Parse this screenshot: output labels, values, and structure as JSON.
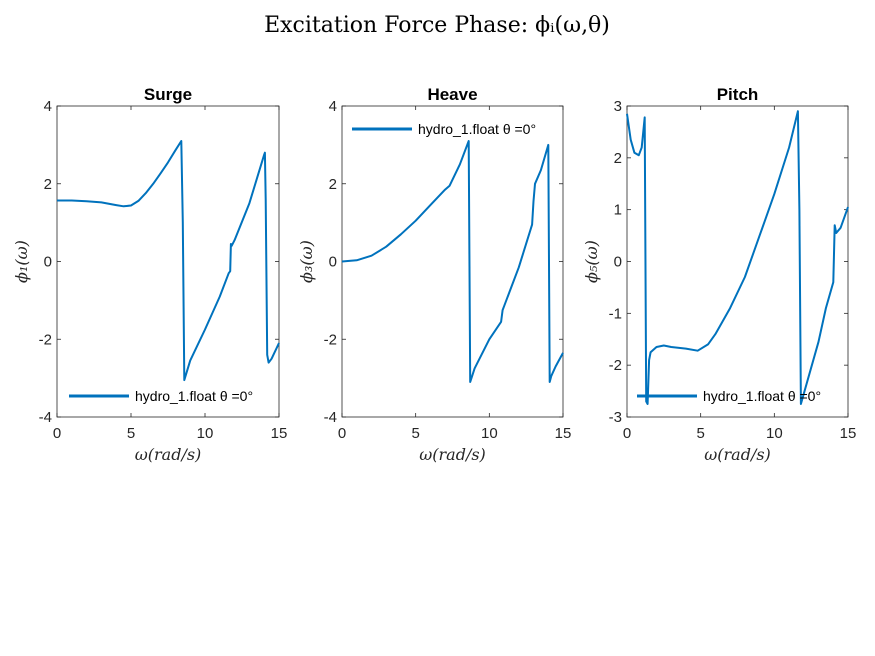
{
  "figure_title": "Excitation Force Phase: ϕᵢ(ω,θ)",
  "line_color": "#0072BD",
  "chart_data": [
    {
      "type": "line",
      "title": "Surge",
      "xlabel": "ω(rad/s)",
      "ylabel": "ϕ₁(ω)",
      "xlim": [
        0,
        15
      ],
      "ylim": [
        -4,
        4
      ],
      "xticks": [
        0,
        5,
        10,
        15
      ],
      "yticks": [
        -4,
        -2,
        0,
        2,
        4
      ],
      "legend_position": "bottom",
      "series": [
        {
          "name": "hydro_1.float θ =0°",
          "x": [
            0,
            1,
            2,
            3,
            4,
            4.5,
            5,
            5.5,
            6,
            6.5,
            7,
            7.5,
            8,
            8.4,
            8.5,
            8.6,
            9,
            10,
            11,
            11.6,
            11.7,
            11.75,
            11.8,
            12,
            13,
            14,
            14.05,
            14.1,
            14.2,
            14.3,
            14.5,
            15
          ],
          "y": [
            1.57,
            1.57,
            1.55,
            1.52,
            1.45,
            1.42,
            1.44,
            1.56,
            1.76,
            2.0,
            2.27,
            2.55,
            2.86,
            3.1,
            1.0,
            -3.05,
            -2.55,
            -1.75,
            -0.9,
            -0.3,
            -0.25,
            0.45,
            0.4,
            0.55,
            1.5,
            2.75,
            2.8,
            1.6,
            -2.4,
            -2.6,
            -2.5,
            -2.1
          ]
        }
      ]
    },
    {
      "type": "line",
      "title": "Heave",
      "xlabel": "ω(rad/s)",
      "ylabel": "ϕ₃(ω)",
      "xlim": [
        0,
        15
      ],
      "ylim": [
        -4,
        4
      ],
      "xticks": [
        0,
        5,
        10,
        15
      ],
      "yticks": [
        -4,
        -2,
        0,
        2,
        4
      ],
      "legend_position": "top",
      "series": [
        {
          "name": "hydro_1.float θ =0°",
          "x": [
            0,
            1,
            2,
            3,
            4,
            5,
            6,
            7,
            7.3,
            8,
            8.6,
            8.7,
            9,
            10,
            10.8,
            10.9,
            11,
            12,
            12.9,
            13,
            13.1,
            13.5,
            14,
            14.1,
            14.2,
            14.5,
            15
          ],
          "y": [
            0,
            0.03,
            0.15,
            0.38,
            0.7,
            1.05,
            1.45,
            1.85,
            1.95,
            2.5,
            3.1,
            -3.1,
            -2.75,
            -2.0,
            -1.55,
            -1.25,
            -1.15,
            -0.15,
            0.95,
            1.55,
            2.0,
            2.35,
            3.0,
            -3.1,
            -2.95,
            -2.7,
            -2.35
          ]
        }
      ]
    },
    {
      "type": "line",
      "title": "Pitch",
      "xlabel": "ω(rad/s)",
      "ylabel": "ϕ₅(ω)",
      "xlim": [
        0,
        15
      ],
      "ylim": [
        -3,
        3
      ],
      "xticks": [
        0,
        5,
        10,
        15
      ],
      "yticks": [
        -3,
        -2,
        -1,
        0,
        1,
        2,
        3
      ],
      "legend_position": "bottom-right",
      "series": [
        {
          "name": "hydro_1.float θ =0°",
          "x": [
            0,
            0.25,
            0.5,
            0.8,
            1.0,
            1.2,
            1.3,
            1.4,
            1.5,
            1.6,
            2,
            2.5,
            3,
            4,
            4.8,
            5.5,
            6,
            7,
            8,
            9,
            10,
            11,
            11.6,
            11.7,
            11.8,
            12,
            13,
            13.5,
            14,
            14.1,
            14.2,
            14.5,
            15
          ],
          "y": [
            2.85,
            2.35,
            2.1,
            2.05,
            2.2,
            2.78,
            -2.7,
            -2.75,
            -1.9,
            -1.75,
            -1.65,
            -1.62,
            -1.65,
            -1.68,
            -1.72,
            -1.6,
            -1.4,
            -0.9,
            -0.3,
            0.5,
            1.3,
            2.2,
            2.9,
            1.0,
            -2.75,
            -2.55,
            -1.55,
            -0.9,
            -0.4,
            0.7,
            0.55,
            0.65,
            1.05
          ]
        }
      ]
    }
  ]
}
